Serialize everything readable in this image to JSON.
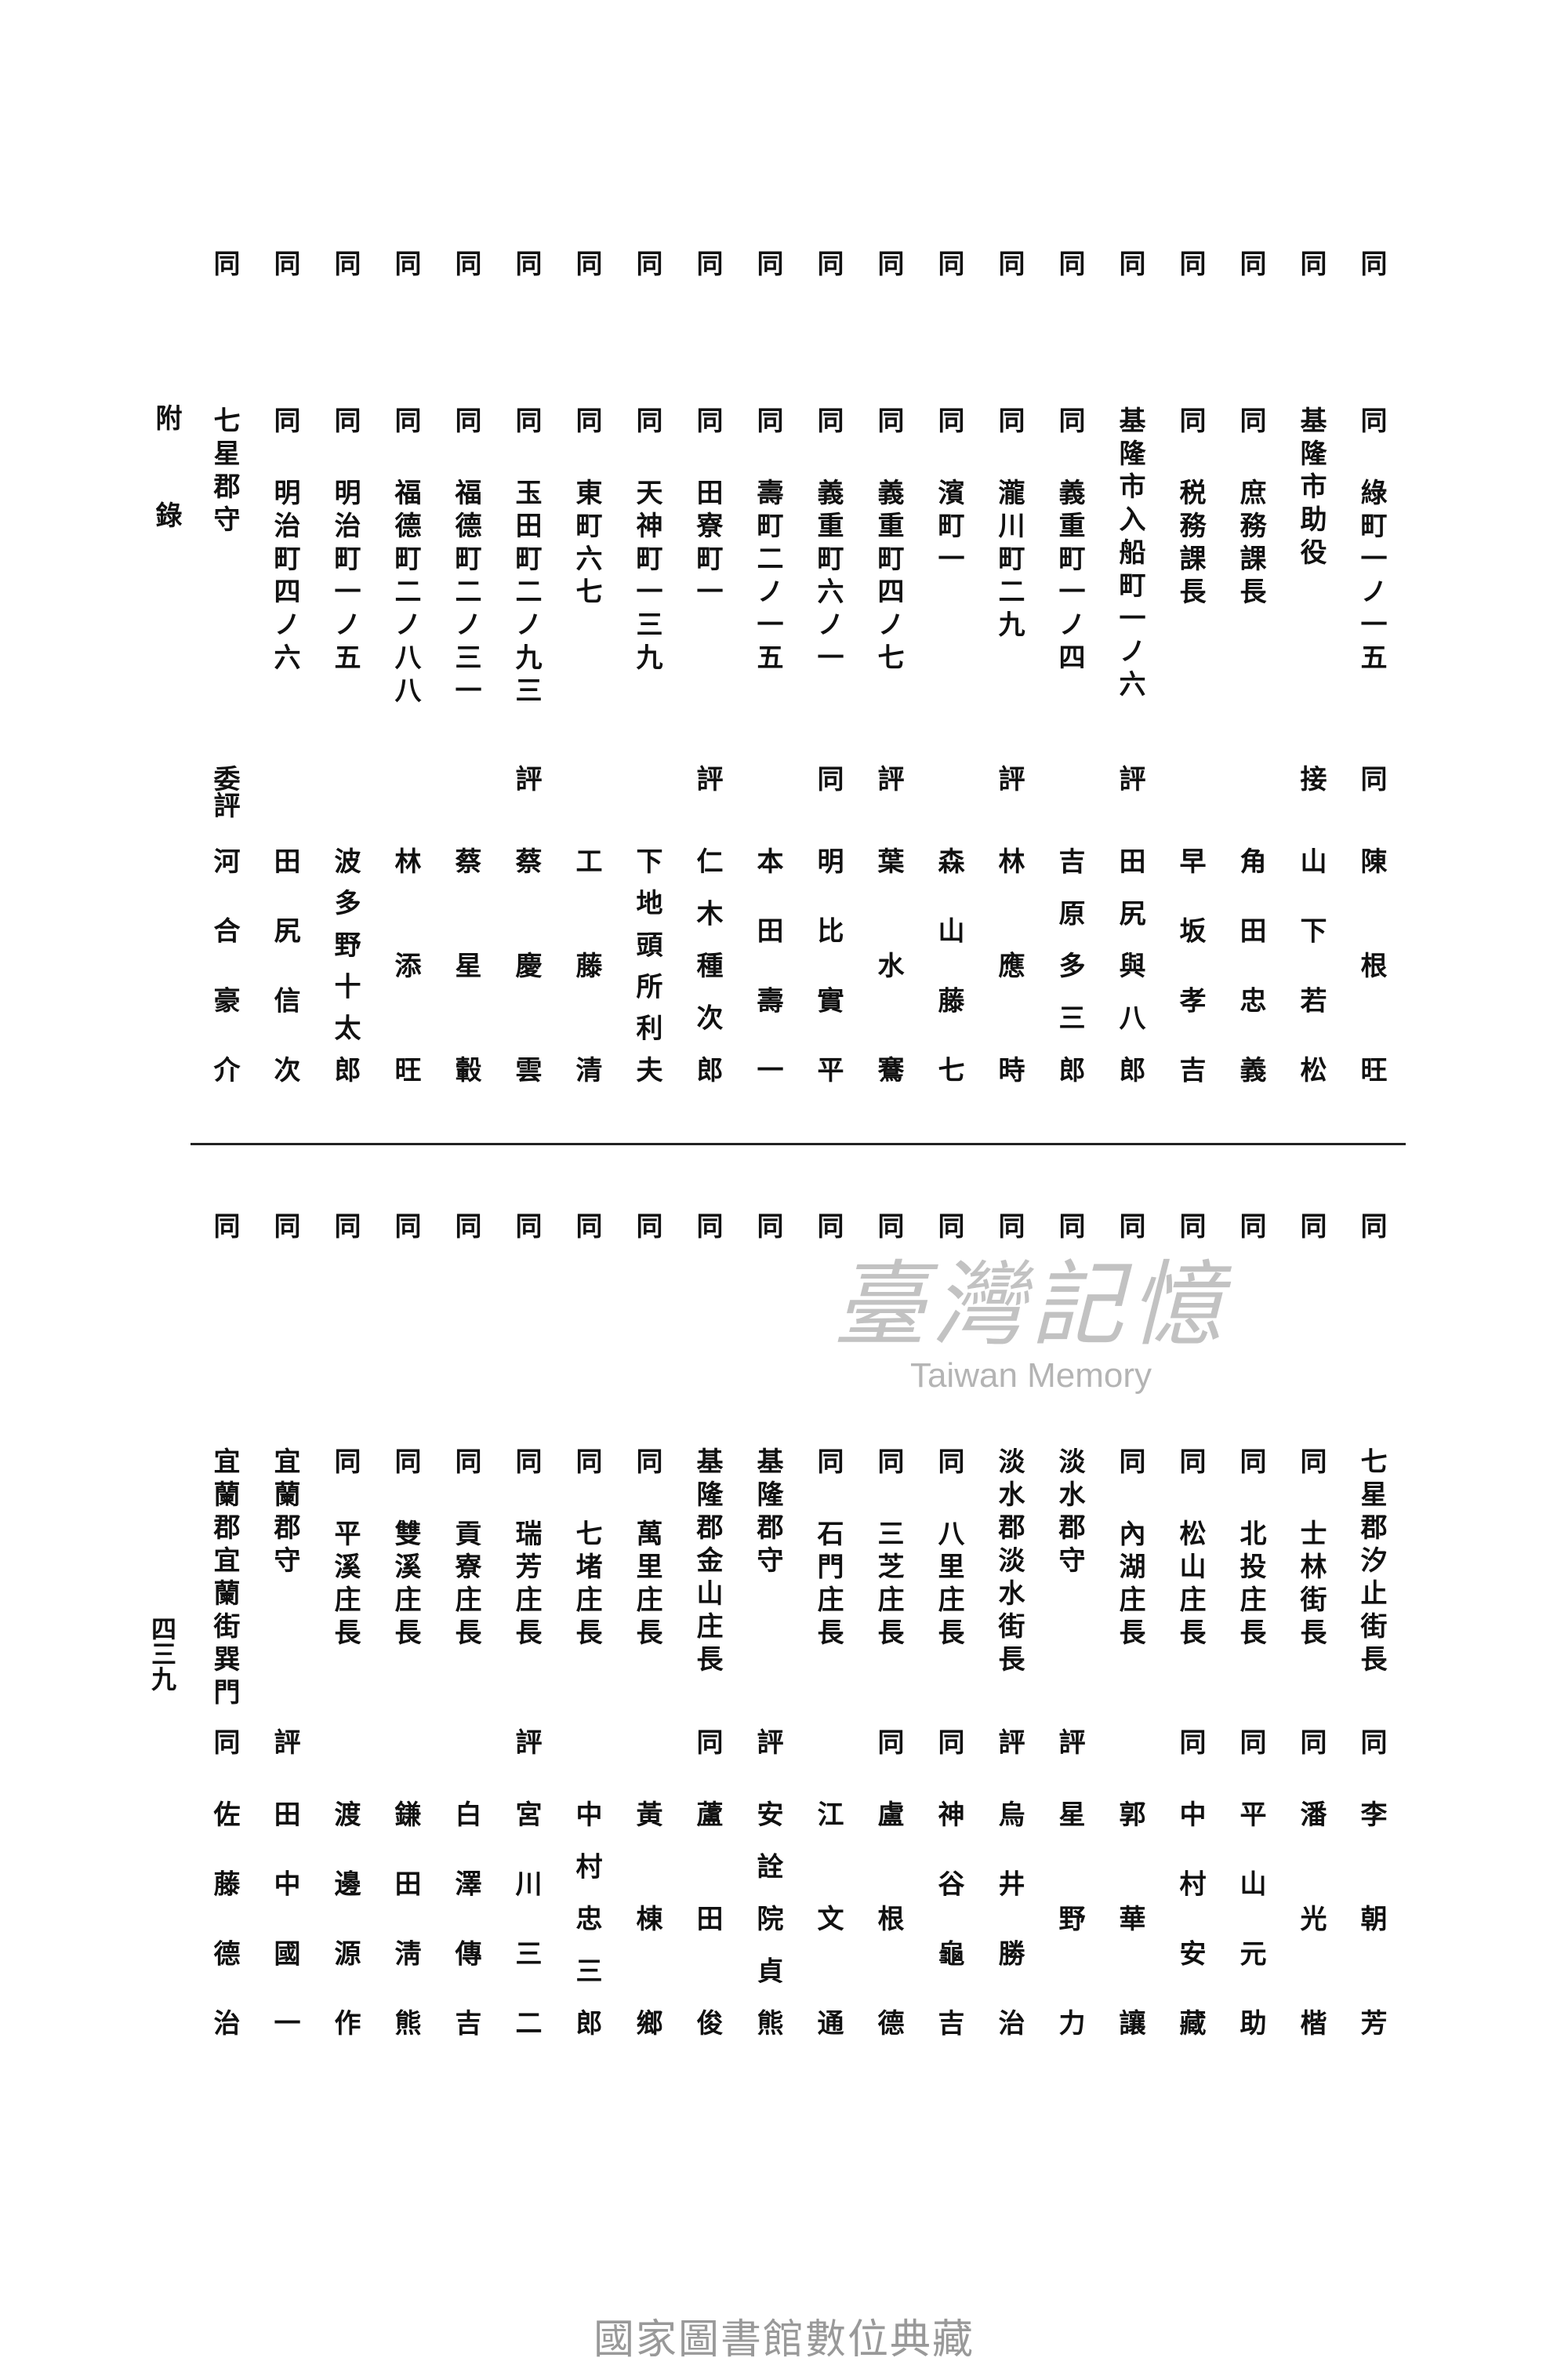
{
  "margin_label": "附錄",
  "page_number": "四三九",
  "watermark": {
    "chinese": "臺灣記憶",
    "english": "Taiwan Memory"
  },
  "footer": "國家圖書館數位典藏",
  "top_section": [
    {
      "ditto": "同",
      "prefix": "同",
      "place": "綠町一ノ一五",
      "mark": "同",
      "name": "陳根旺"
    },
    {
      "ditto": "同",
      "prefix": "",
      "place": "基隆市助役",
      "mark": "接",
      "name": "山下若松"
    },
    {
      "ditto": "同",
      "prefix": "同",
      "place": "庶務課長",
      "mark": "",
      "name": "角田忠義"
    },
    {
      "ditto": "同",
      "prefix": "同",
      "place": "税務課長",
      "mark": "",
      "name": "早坂孝吉"
    },
    {
      "ditto": "同",
      "prefix": "",
      "place": "基隆市入船町一ノ六",
      "mark": "評",
      "name": "田尻與八郎"
    },
    {
      "ditto": "同",
      "prefix": "同",
      "place": "義重町一ノ四",
      "mark": "",
      "name": "吉原多三郎"
    },
    {
      "ditto": "同",
      "prefix": "同",
      "place": "瀧川町二九",
      "mark": "評",
      "name": "林應時"
    },
    {
      "ditto": "同",
      "prefix": "同",
      "place": "濱町一",
      "mark": "",
      "name": "森山藤七"
    },
    {
      "ditto": "同",
      "prefix": "同",
      "place": "義重町四ノ七",
      "mark": "評",
      "name": "葉水鶱"
    },
    {
      "ditto": "同",
      "prefix": "同",
      "place": "義重町六ノ一",
      "mark": "同",
      "name": "明比實平"
    },
    {
      "ditto": "同",
      "prefix": "同",
      "place": "壽町二ノ一五",
      "mark": "",
      "name": "本田壽一"
    },
    {
      "ditto": "同",
      "prefix": "同",
      "place": "田寮町一",
      "mark": "評",
      "name": "仁木種次郎"
    },
    {
      "ditto": "同",
      "prefix": "同",
      "place": "天神町一三九",
      "mark": "",
      "name": "下地頭所利夫"
    },
    {
      "ditto": "同",
      "prefix": "同",
      "place": "東町六七",
      "mark": "",
      "name": "工藤清"
    },
    {
      "ditto": "同",
      "prefix": "同",
      "place": "玉田町二ノ九三",
      "mark": "評",
      "name": "蔡慶雲"
    },
    {
      "ditto": "同",
      "prefix": "同",
      "place": "福德町二ノ三一",
      "mark": "",
      "name": "蔡星轂"
    },
    {
      "ditto": "同",
      "prefix": "同",
      "place": "福德町二ノ八八",
      "mark": "",
      "name": "林添旺"
    },
    {
      "ditto": "同",
      "prefix": "同",
      "place": "明治町一ノ五",
      "mark": "",
      "name": "波多野十太郎"
    },
    {
      "ditto": "同",
      "prefix": "同",
      "place": "明治町四ノ六",
      "mark": "",
      "name": "田尻信次"
    },
    {
      "ditto": "同",
      "prefix": "",
      "place": "七星郡守",
      "mark": "委評",
      "name": "河合豪介"
    }
  ],
  "bottom_section": [
    {
      "ditto": "同",
      "prefix": "",
      "place": "七星郡汐止街長",
      "mark": "同",
      "name": "李朝芳"
    },
    {
      "ditto": "同",
      "prefix": "同",
      "place": "士林街長",
      "mark": "同",
      "name": "潘光楷"
    },
    {
      "ditto": "同",
      "prefix": "同",
      "place": "北投庄長",
      "mark": "同",
      "name": "平山元助"
    },
    {
      "ditto": "同",
      "prefix": "同",
      "place": "松山庄長",
      "mark": "同",
      "name": "中村安藏"
    },
    {
      "ditto": "同",
      "prefix": "同",
      "place": "內湖庄長",
      "mark": "",
      "name": "郭華讓"
    },
    {
      "ditto": "同",
      "prefix": "",
      "place": "淡水郡守",
      "mark": "評",
      "name": "星野力"
    },
    {
      "ditto": "同",
      "prefix": "",
      "place": "淡水郡淡水街長",
      "mark": "評",
      "name": "烏井勝治"
    },
    {
      "ditto": "同",
      "prefix": "同",
      "place": "八里庄長",
      "mark": "同",
      "name": "神谷龜吉"
    },
    {
      "ditto": "同",
      "prefix": "同",
      "place": "三芝庄長",
      "mark": "同",
      "name": "盧根德"
    },
    {
      "ditto": "同",
      "prefix": "同",
      "place": "石門庄長",
      "mark": "",
      "name": "江文通"
    },
    {
      "ditto": "同",
      "prefix": "",
      "place": "基隆郡守",
      "mark": "評",
      "name": "安詮院貞熊"
    },
    {
      "ditto": "同",
      "prefix": "",
      "place": "基隆郡金山庄長",
      "mark": "同",
      "name": "蘆田俊"
    },
    {
      "ditto": "同",
      "prefix": "同",
      "place": "萬里庄長",
      "mark": "",
      "name": "黃棟鄉"
    },
    {
      "ditto": "同",
      "prefix": "同",
      "place": "七堵庄長",
      "mark": "",
      "name": "中村忠三郎"
    },
    {
      "ditto": "同",
      "prefix": "同",
      "place": "瑞芳庄長",
      "mark": "評",
      "name": "宮川三二"
    },
    {
      "ditto": "同",
      "prefix": "同",
      "place": "貢寮庄長",
      "mark": "",
      "name": "白澤傳吉"
    },
    {
      "ditto": "同",
      "prefix": "同",
      "place": "雙溪庄長",
      "mark": "",
      "name": "鎌田淸熊"
    },
    {
      "ditto": "同",
      "prefix": "同",
      "place": "平溪庄長",
      "mark": "",
      "name": "渡邊源作"
    },
    {
      "ditto": "同",
      "prefix": "",
      "place": "宜蘭郡守",
      "mark": "評",
      "name": "田中國一"
    },
    {
      "ditto": "同",
      "prefix": "",
      "place": "宜蘭郡宜蘭街巽門",
      "mark": "同",
      "name": "佐藤德治"
    }
  ]
}
